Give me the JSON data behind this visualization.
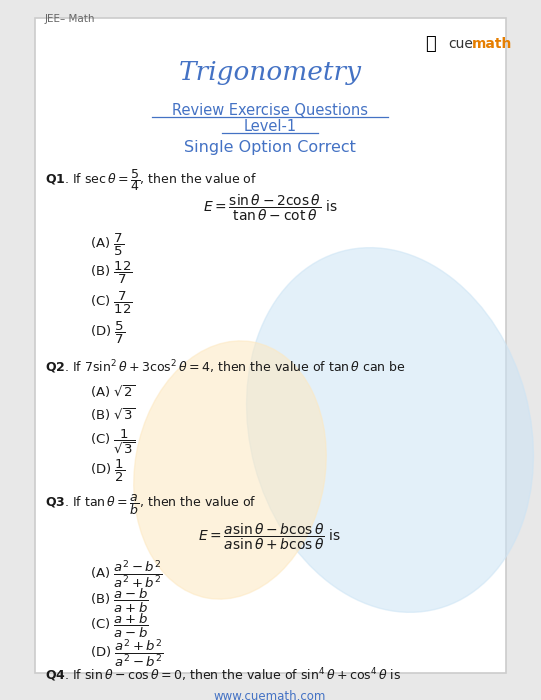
{
  "title": "Trigonometry",
  "header_text": "JEE– Math",
  "subtitle1": "Review Exercise Questions",
  "subtitle2": "Level-1",
  "subtitle3": "Single Option Correct",
  "bg_color": "#e8e8e8",
  "panel_color": "#ffffff",
  "border_color": "#cccccc",
  "title_color": "#4472c4",
  "subtitle_color": "#4472c4",
  "text_color": "#1a1a1a",
  "footer": "www.cuemath.com",
  "footer_color": "#4472c4",
  "header_color": "#666666",
  "watermark_blue": "#cce4f5",
  "watermark_orange": "#fde8c0"
}
